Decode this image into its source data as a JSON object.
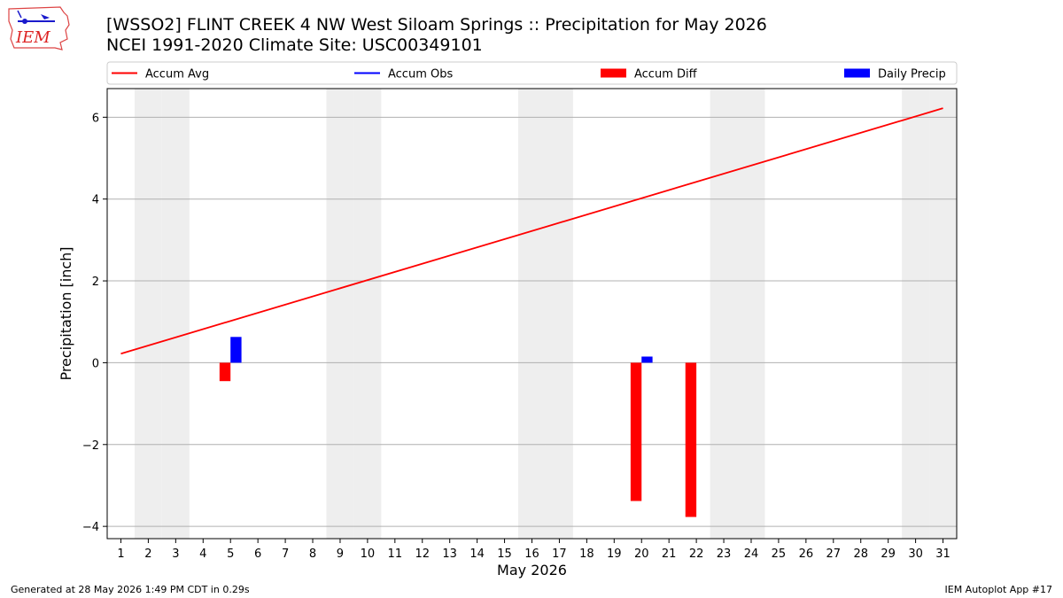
{
  "title": "[WSSO2] FLINT CREEK 4 NW West Siloam Springs :: Precipitation for May 2026",
  "subtitle": "NCEI 1991-2020 Climate Site: USC00349101",
  "logo_text": "IEM",
  "footer_left": "Generated at 28 May 2026 1:49 PM CDT in 0.29s",
  "footer_right": "IEM Autoplot App #17",
  "colors": {
    "accum_avg": "#ff0000",
    "accum_obs": "#0000ff",
    "accum_diff": "#ff0000",
    "daily_precip": "#0000ff",
    "weekend_shade": "#eeeeee",
    "grid": "#b0b0b0"
  },
  "chart_data": {
    "type": "bar",
    "title": "[WSSO2] FLINT CREEK 4 NW West Siloam Springs :: Precipitation for May 2026",
    "xlabel": "May 2026",
    "ylabel": "Precipitation [inch]",
    "xlim": [
      0.5,
      31.5
    ],
    "ylim": [
      -4.3,
      6.7
    ],
    "x_ticks": [
      1,
      2,
      3,
      4,
      5,
      6,
      7,
      8,
      9,
      10,
      11,
      12,
      13,
      14,
      15,
      16,
      17,
      18,
      19,
      20,
      21,
      22,
      23,
      24,
      25,
      26,
      27,
      28,
      29,
      30,
      31
    ],
    "y_ticks": [
      -4,
      -2,
      0,
      2,
      4,
      6
    ],
    "y_tick_labels": [
      "−4",
      "−2",
      "0",
      "2",
      "4",
      "6"
    ],
    "grid": "horizontal",
    "legend_position": "top",
    "legend": [
      "Accum Avg",
      "Accum Obs",
      "Accum Diff",
      "Daily Precip"
    ],
    "weekend_days": [
      2,
      3,
      9,
      10,
      16,
      17,
      23,
      24,
      30,
      31
    ],
    "series": [
      {
        "name": "Accum Avg",
        "type": "line",
        "x": [
          1,
          31
        ],
        "values": [
          0.22,
          6.22
        ]
      },
      {
        "name": "Accum Diff",
        "type": "bar",
        "x": [
          5,
          20,
          22
        ],
        "values": [
          -0.45,
          -3.38,
          -3.77
        ]
      },
      {
        "name": "Daily Precip",
        "type": "bar",
        "x": [
          5,
          20
        ],
        "values": [
          0.63,
          0.15
        ]
      }
    ]
  }
}
